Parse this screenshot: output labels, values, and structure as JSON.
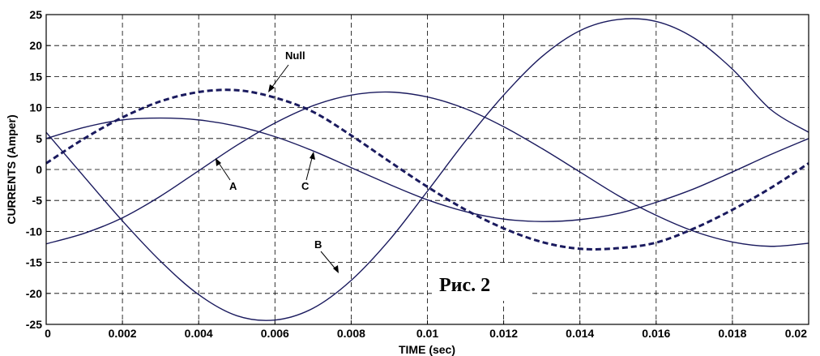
{
  "chart_data": {
    "type": "line",
    "title": "",
    "xlabel": "TIME (sec)",
    "ylabel": "CURRENTS (Amper)",
    "xlim": [
      0,
      0.02
    ],
    "ylim": [
      -25,
      25
    ],
    "grid": true,
    "x_ticks": [
      "0",
      "0.002",
      "0.004",
      "0.006",
      "0.008",
      "0.01",
      "0.012",
      "0.014",
      "0.016",
      "0.018",
      "0.02"
    ],
    "y_ticks": [
      "25",
      "20",
      "15",
      "10",
      "5",
      "0",
      "-5",
      "-10",
      "-15",
      "-20",
      "-25"
    ],
    "x": [
      0,
      0.001,
      0.002,
      0.003,
      0.004,
      0.005,
      0.006,
      0.007,
      0.008,
      0.009,
      0.01,
      0.011,
      0.012,
      0.013,
      0.014,
      0.015,
      0.016,
      0.017,
      0.018,
      0.019,
      0.02
    ],
    "series": [
      {
        "name": "A",
        "color": "#1a1a5e",
        "dashed": false,
        "values": [
          -12.0,
          -10.3,
          -7.8,
          -4.3,
          -0.2,
          3.9,
          7.5,
          10.3,
          12.0,
          12.5,
          11.7,
          9.8,
          6.9,
          3.4,
          -0.4,
          -4.2,
          -7.4,
          -10.0,
          -11.7,
          -12.4,
          -11.9
        ]
      },
      {
        "name": "B",
        "color": "#1a1a5e",
        "dashed": false,
        "values": [
          6.0,
          -1.2,
          -8.3,
          -14.8,
          -20.2,
          -23.6,
          -24.3,
          -22.4,
          -17.9,
          -11.4,
          -3.5,
          4.6,
          12.0,
          18.2,
          22.4,
          24.2,
          23.9,
          21.2,
          16.2,
          9.7,
          6.0
        ]
      },
      {
        "name": "C",
        "color": "#1a1a5e",
        "dashed": false,
        "values": [
          5.0,
          6.8,
          8.0,
          8.3,
          8.0,
          7.0,
          5.3,
          3.0,
          0.3,
          -2.4,
          -4.9,
          -6.8,
          -8.0,
          -8.4,
          -8.1,
          -7.1,
          -5.3,
          -3.1,
          -0.4,
          2.4,
          5.0
        ]
      },
      {
        "name": "Null",
        "color": "#1a1a5e",
        "dashed": true,
        "values": [
          1.0,
          5.0,
          8.4,
          11.0,
          12.5,
          12.8,
          11.6,
          9.3,
          5.5,
          1.3,
          -2.8,
          -6.5,
          -9.5,
          -11.7,
          -12.8,
          -12.7,
          -11.8,
          -9.5,
          -6.5,
          -3.0,
          1.0
        ]
      }
    ],
    "annotations": [
      "Null",
      "A",
      "B",
      "C"
    ],
    "caption": "Рис. 2"
  }
}
